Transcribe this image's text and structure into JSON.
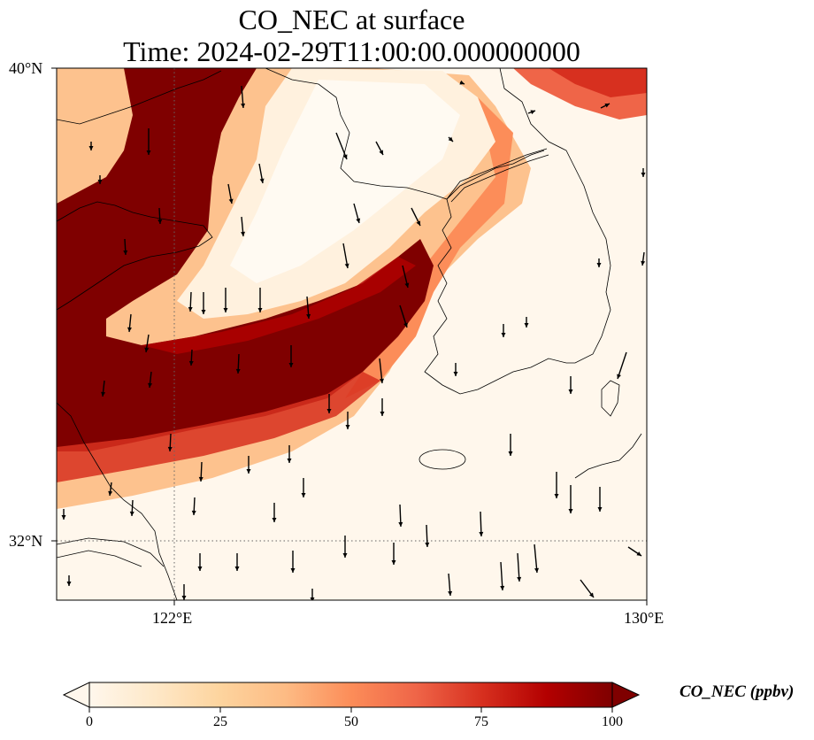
{
  "title": {
    "line1": "CO_NEC at surface",
    "line2": "Time: 2024-02-29T11:00:00.000000000"
  },
  "map": {
    "lon_range": [
      120,
      130
    ],
    "lat_range": [
      31,
      40
    ],
    "lat_ticks": [
      {
        "value": 40,
        "label": "40°N"
      },
      {
        "value": 32,
        "label": "32°N"
      }
    ],
    "lon_ticks": [
      {
        "value": 122,
        "label": "122°E"
      },
      {
        "value": 130,
        "label": "130°E"
      }
    ],
    "gridlines": "dotted",
    "variable": "CO_NEC",
    "units": "ppbv",
    "wind_vectors": true
  },
  "colorbar": {
    "label": "CO_NEC (ppbv)",
    "min": 0,
    "max": 100,
    "ticks": [
      "0",
      "25",
      "50",
      "75",
      "100"
    ],
    "colormap": "OrRd",
    "colors": [
      "#fff7ec",
      "#fee8c8",
      "#fdd49e",
      "#fdbb84",
      "#fc8d59",
      "#ef6548",
      "#d7301f",
      "#b30000",
      "#7f0000"
    ],
    "extend": "both"
  }
}
